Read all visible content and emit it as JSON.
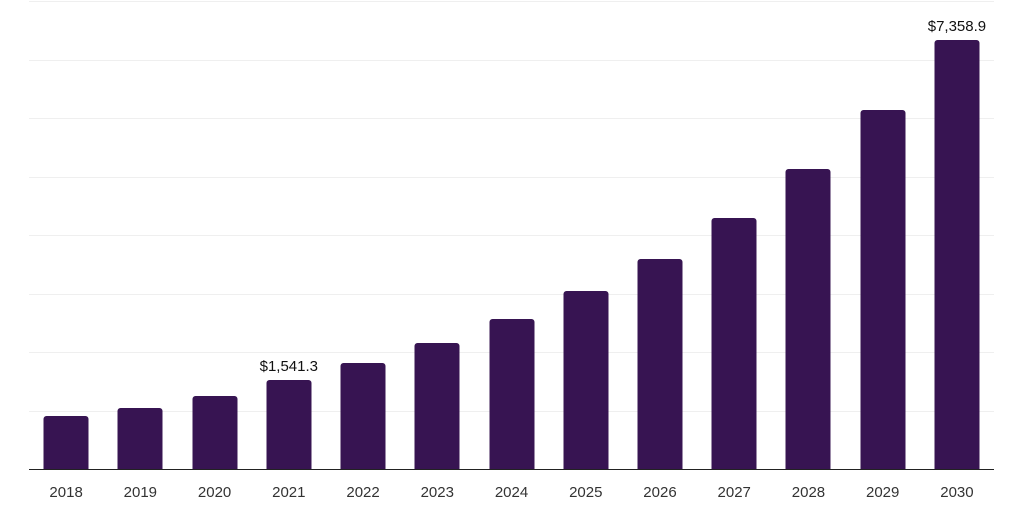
{
  "chart_data": {
    "type": "bar",
    "categories": [
      "2018",
      "2019",
      "2020",
      "2021",
      "2022",
      "2023",
      "2024",
      "2025",
      "2026",
      "2027",
      "2028",
      "2029",
      "2030"
    ],
    "values": [
      915,
      1055,
      1270,
      1541.3,
      1825,
      2175,
      2575,
      3060,
      3615,
      4300,
      5150,
      6160,
      7358.9
    ],
    "labeled_points": [
      {
        "category": "2021",
        "text": "$1,541.3"
      },
      {
        "category": "2030",
        "text": "$7,358.9"
      }
    ],
    "title": "",
    "xlabel": "",
    "ylabel": "",
    "ylim": [
      0,
      8000
    ],
    "gridline_step": 1000,
    "grid": "horizontal",
    "y_axis_tick_labels_visible": false,
    "legend": "none"
  },
  "colors": {
    "bar": "#371452",
    "background": "#ffffff",
    "gridline": "#efefef",
    "axis_line": "#222222",
    "x_label_text": "#333333",
    "data_label_text": "#111111"
  }
}
